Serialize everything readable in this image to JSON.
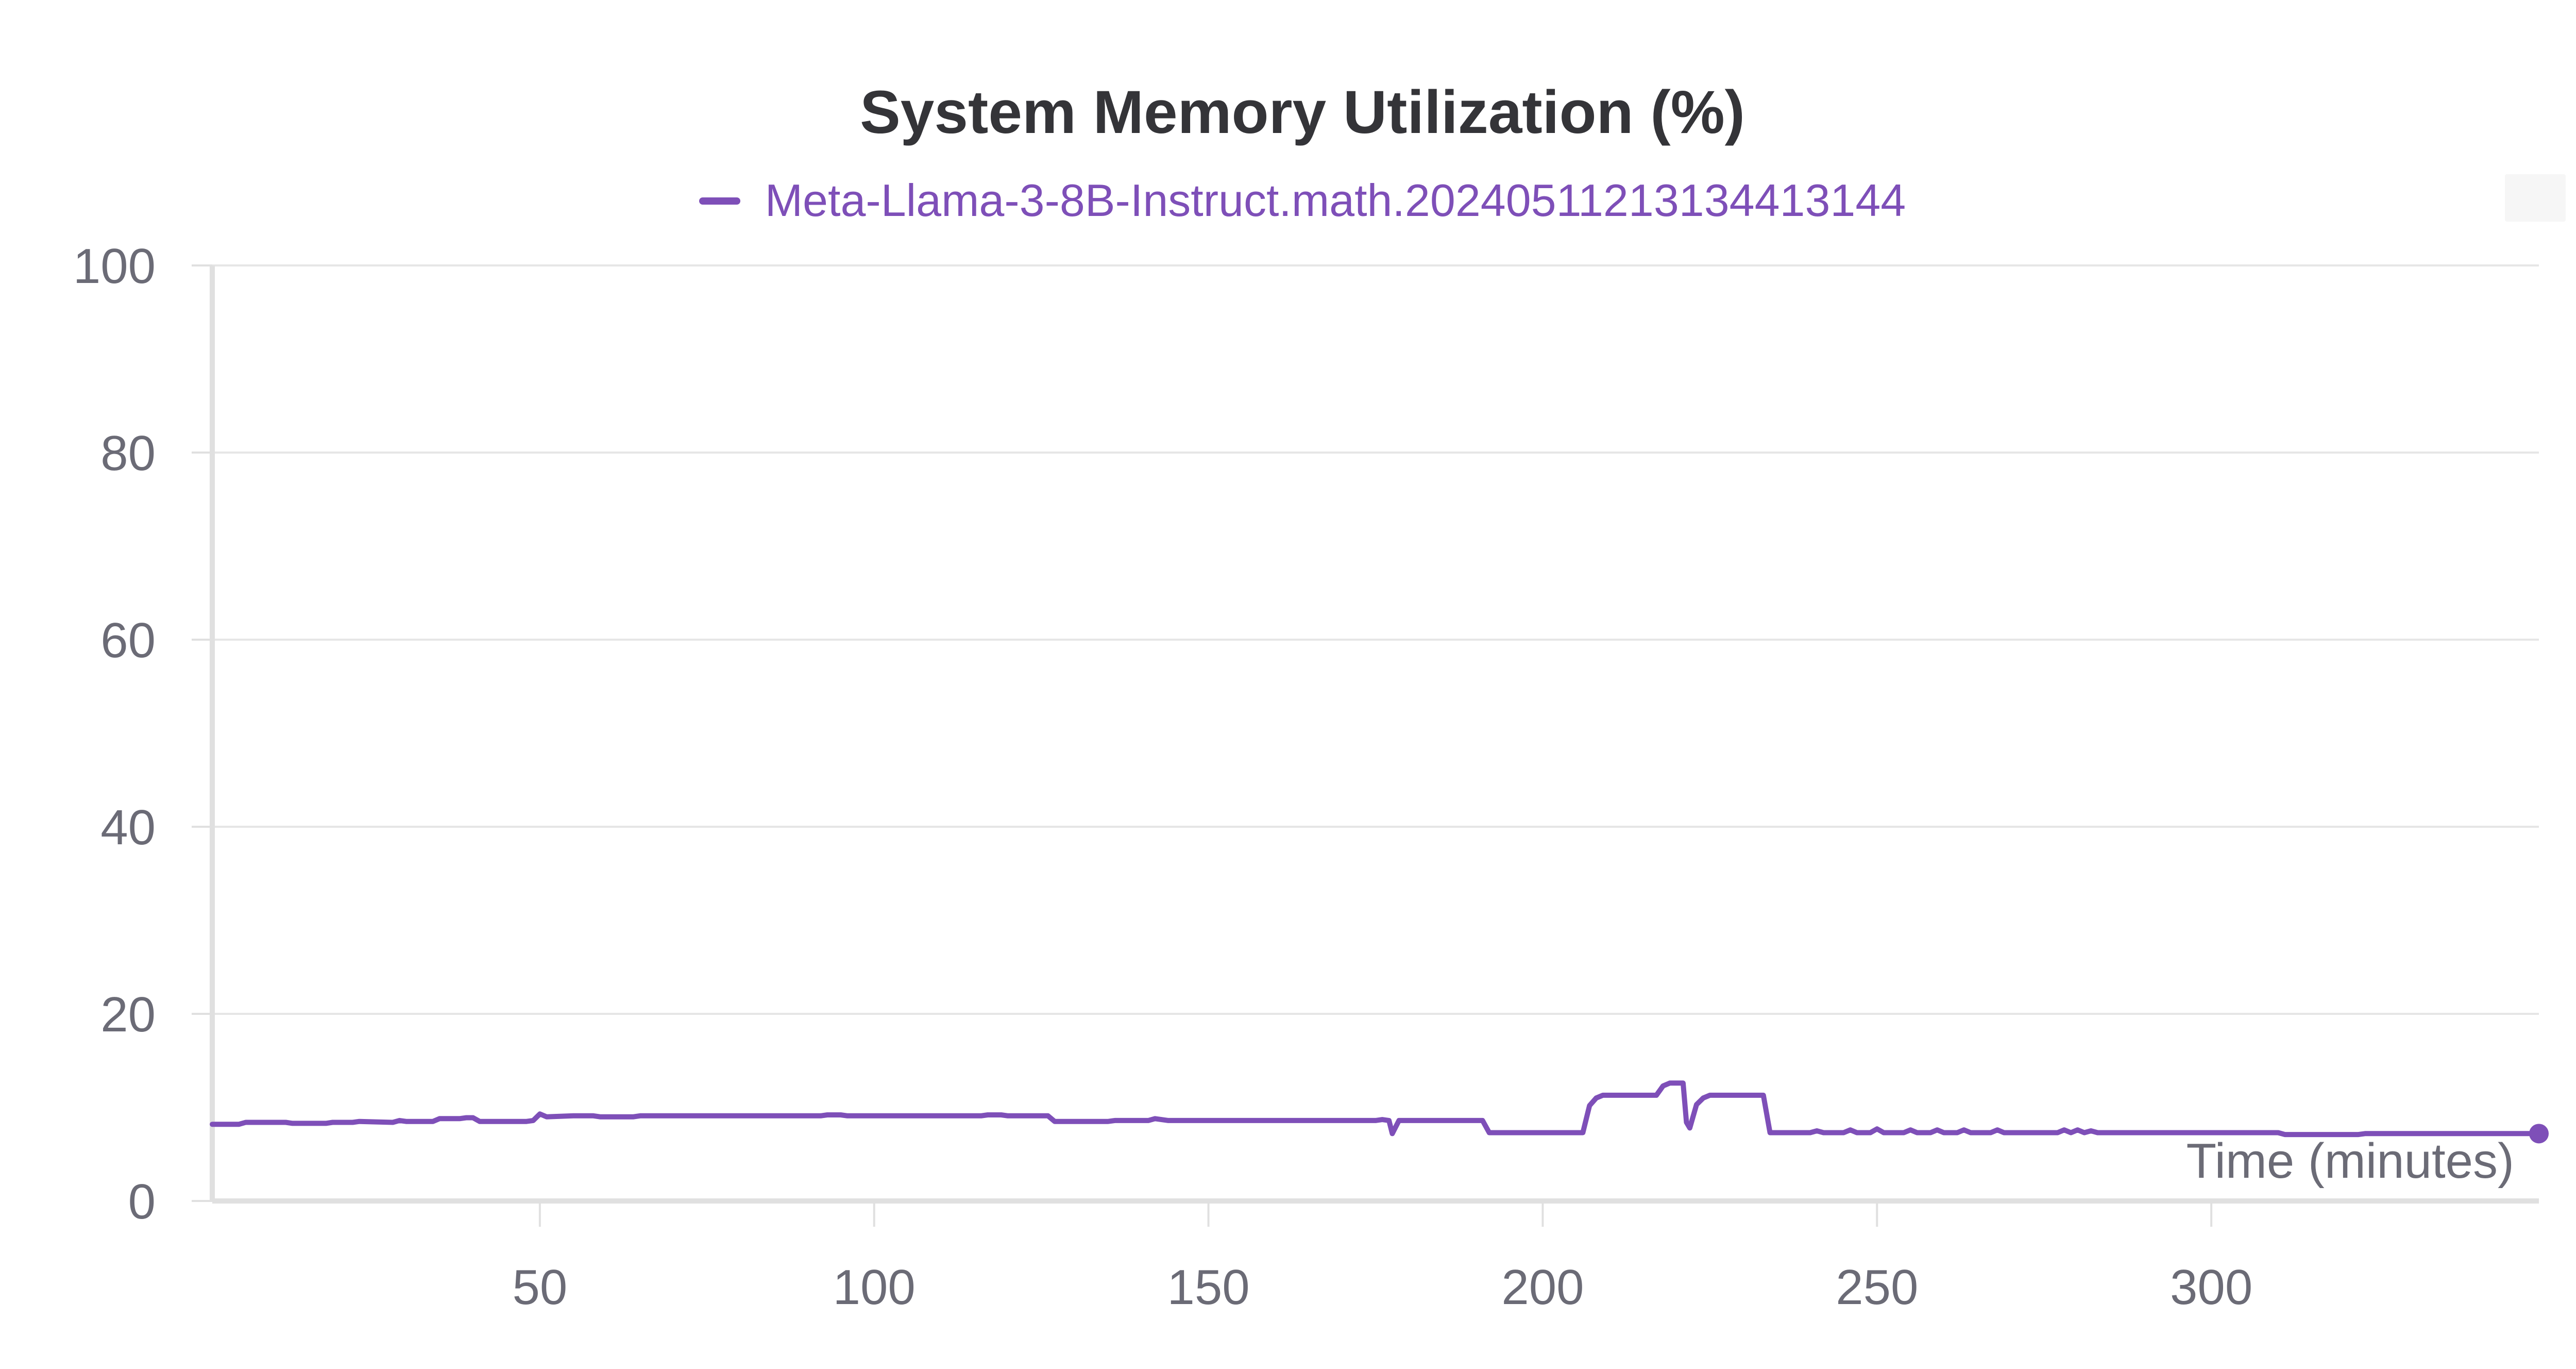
{
  "chart_data": {
    "type": "line",
    "title": "System Memory Utilization (%)",
    "xlabel": "Time (minutes)",
    "ylabel": "",
    "xlim": [
      1,
      349
    ],
    "ylim": [
      0,
      100
    ],
    "xticks": [
      50,
      100,
      150,
      200,
      250,
      300
    ],
    "yticks": [
      0,
      20,
      40,
      60,
      80,
      100
    ],
    "grid": true,
    "legend_position": "top-center",
    "series": [
      {
        "name": "Meta-Llama-3-8B-Instruct.math.20240511213134413144",
        "color": "#7e4fb8",
        "points": [
          [
            1,
            8.2
          ],
          [
            5,
            8.2
          ],
          [
            6,
            8.4
          ],
          [
            12,
            8.4
          ],
          [
            13,
            8.3
          ],
          [
            18,
            8.3
          ],
          [
            19,
            8.4
          ],
          [
            22,
            8.4
          ],
          [
            23,
            8.5
          ],
          [
            28,
            8.4
          ],
          [
            29,
            8.6
          ],
          [
            30,
            8.5
          ],
          [
            34,
            8.5
          ],
          [
            35,
            8.8
          ],
          [
            38,
            8.8
          ],
          [
            39,
            8.9
          ],
          [
            40,
            8.9
          ],
          [
            41,
            8.5
          ],
          [
            48,
            8.5
          ],
          [
            49,
            8.6
          ],
          [
            50,
            9.3
          ],
          [
            51,
            9.0
          ],
          [
            55,
            9.1
          ],
          [
            58,
            9.1
          ],
          [
            59,
            9.0
          ],
          [
            64,
            9.0
          ],
          [
            65,
            9.1
          ],
          [
            92,
            9.1
          ],
          [
            93,
            9.2
          ],
          [
            95,
            9.2
          ],
          [
            96,
            9.1
          ],
          [
            116,
            9.1
          ],
          [
            117,
            9.2
          ],
          [
            119,
            9.2
          ],
          [
            120,
            9.1
          ],
          [
            126,
            9.1
          ],
          [
            127,
            8.5
          ],
          [
            135,
            8.5
          ],
          [
            136,
            8.6
          ],
          [
            141,
            8.6
          ],
          [
            142,
            8.8
          ],
          [
            144,
            8.6
          ],
          [
            175,
            8.6
          ],
          [
            176,
            8.7
          ],
          [
            177,
            8.6
          ],
          [
            177.5,
            7.2
          ],
          [
            178.5,
            8.6
          ],
          [
            191,
            8.6
          ],
          [
            192,
            7.3
          ],
          [
            206,
            7.3
          ],
          [
            207,
            10.2
          ],
          [
            208,
            11.0
          ],
          [
            209,
            11.3
          ],
          [
            217,
            11.3
          ],
          [
            218,
            12.3
          ],
          [
            219,
            12.6
          ],
          [
            221,
            12.6
          ],
          [
            221.5,
            8.4
          ],
          [
            222,
            7.8
          ],
          [
            223,
            10.3
          ],
          [
            224,
            11.0
          ],
          [
            225,
            11.3
          ],
          [
            233,
            11.3
          ],
          [
            234,
            7.3
          ],
          [
            240,
            7.3
          ],
          [
            241,
            7.5
          ],
          [
            242,
            7.3
          ],
          [
            245,
            7.3
          ],
          [
            246,
            7.6
          ],
          [
            247,
            7.3
          ],
          [
            249,
            7.3
          ],
          [
            250,
            7.7
          ],
          [
            251,
            7.3
          ],
          [
            254,
            7.3
          ],
          [
            255,
            7.6
          ],
          [
            256,
            7.3
          ],
          [
            258,
            7.3
          ],
          [
            259,
            7.6
          ],
          [
            260,
            7.3
          ],
          [
            262,
            7.3
          ],
          [
            263,
            7.6
          ],
          [
            264,
            7.3
          ],
          [
            267,
            7.3
          ],
          [
            268,
            7.6
          ],
          [
            269,
            7.3
          ],
          [
            277,
            7.3
          ],
          [
            278,
            7.6
          ],
          [
            279,
            7.3
          ],
          [
            280,
            7.6
          ],
          [
            281,
            7.3
          ],
          [
            282,
            7.5
          ],
          [
            283,
            7.3
          ],
          [
            310,
            7.3
          ],
          [
            311,
            7.1
          ],
          [
            322,
            7.1
          ],
          [
            323,
            7.2
          ],
          [
            349,
            7.2
          ]
        ]
      }
    ]
  }
}
